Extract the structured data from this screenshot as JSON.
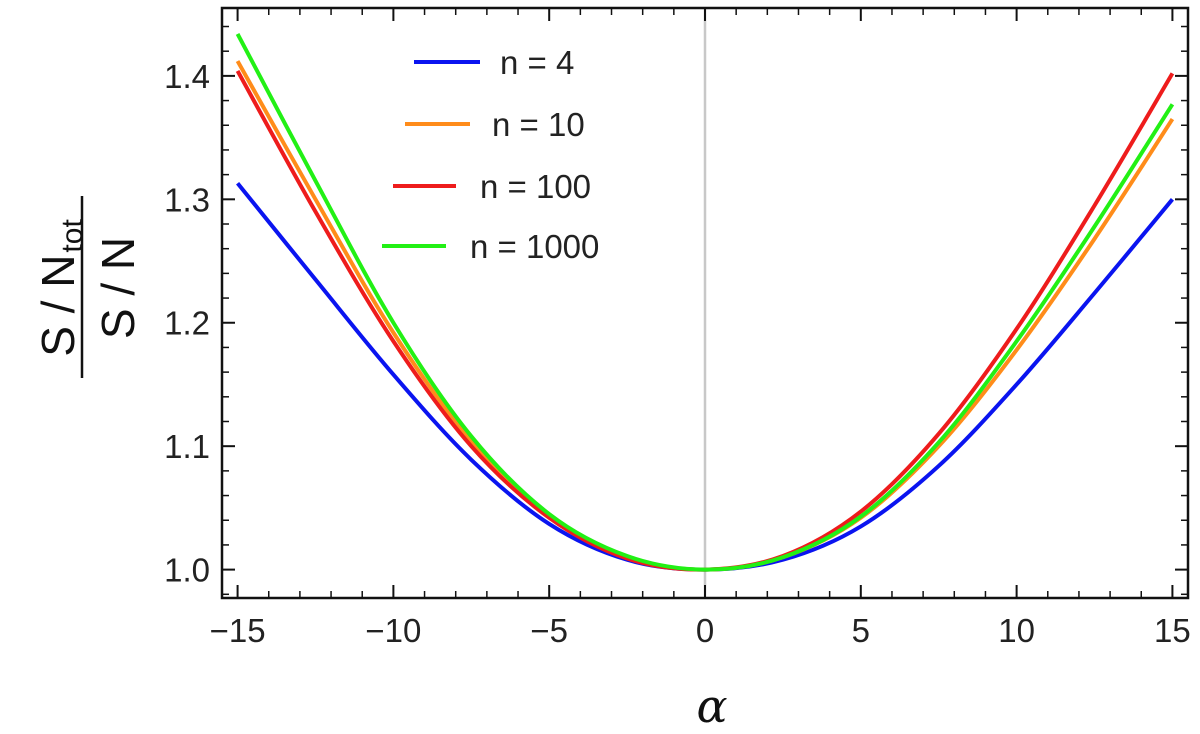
{
  "chart_data": {
    "type": "line",
    "title": "",
    "xlabel": "α",
    "ylabel": {
      "num_main": "S / N",
      "num_sub": "tot",
      "den": "S / N"
    },
    "xlim": [
      -15.5,
      15.5
    ],
    "ylim": [
      0.977,
      1.455
    ],
    "xticks": [
      -15,
      -10,
      -5,
      0,
      5,
      10,
      15
    ],
    "xtick_labels": [
      "−15",
      "−10",
      "−5",
      "0",
      "5",
      "10",
      "15"
    ],
    "yticks": [
      1.0,
      1.1,
      1.2,
      1.3,
      1.4
    ],
    "ytick_labels": [
      "1.0",
      "1.1",
      "1.2",
      "1.3",
      "1.4"
    ],
    "grid": false,
    "vertical_reference_line_x": 0,
    "legend_position": "top-left",
    "series": [
      {
        "name": "n = 4",
        "color": "#0a14f0",
        "x": [
          -15,
          -12.5,
          -10,
          -7.5,
          -5,
          -2.5,
          0,
          2.5,
          5,
          7.5,
          10,
          12.5,
          15
        ],
        "values": [
          1.313,
          1.235,
          1.158,
          1.089,
          1.037,
          1.008,
          1.0,
          1.008,
          1.035,
          1.084,
          1.15,
          1.224,
          1.3
        ]
      },
      {
        "name": "n = 10",
        "color": "#ff8c1a",
        "x": [
          -15,
          -12.5,
          -10,
          -7.5,
          -5,
          -2.5,
          0,
          2.5,
          5,
          7.5,
          10,
          12.5,
          15
        ],
        "values": [
          1.412,
          1.3,
          1.192,
          1.104,
          1.043,
          1.01,
          1.0,
          1.01,
          1.042,
          1.1,
          1.178,
          1.268,
          1.365
        ]
      },
      {
        "name": "n = 100",
        "color": "#ee1c1c",
        "x": [
          -15,
          -12.5,
          -10,
          -7.5,
          -5,
          -2.5,
          0,
          2.5,
          5,
          7.5,
          10,
          12.5,
          15
        ],
        "values": [
          1.404,
          1.29,
          1.185,
          1.1,
          1.042,
          1.009,
          1.0,
          1.011,
          1.047,
          1.11,
          1.195,
          1.295,
          1.402
        ]
      },
      {
        "name": "n = 1000",
        "color": "#22f015",
        "x": [
          -15,
          -12.5,
          -10,
          -7.5,
          -5,
          -2.5,
          0,
          2.5,
          5,
          7.5,
          10,
          12.5,
          15
        ],
        "values": [
          1.434,
          1.315,
          1.2,
          1.108,
          1.045,
          1.011,
          1.0,
          1.01,
          1.043,
          1.103,
          1.185,
          1.278,
          1.377
        ]
      }
    ]
  }
}
